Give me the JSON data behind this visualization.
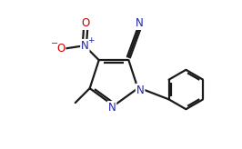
{
  "bg_color": "#ffffff",
  "bond_color": "#1a1a1a",
  "atom_colors": {
    "N": "#2222aa",
    "O": "#cc0000",
    "C": "#1a1a1a"
  },
  "line_width": 1.6,
  "font_size_atoms": 8.5,
  "fig_width": 2.66,
  "fig_height": 1.64,
  "dpi": 100
}
